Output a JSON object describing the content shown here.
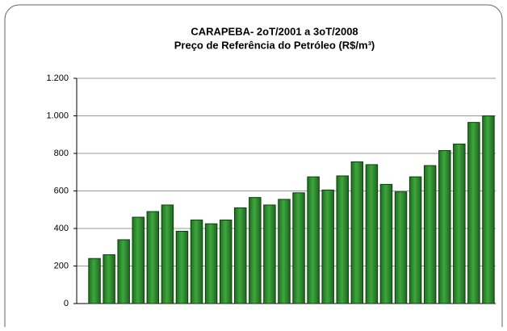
{
  "chart_data": {
    "type": "bar",
    "title": "CARAPEBA- 2oT/2001 a 3oT/2008",
    "subtitle": "Preço de Referência do Petróleo (R$/m³)",
    "categories": [
      null,
      null,
      null,
      null,
      null,
      null,
      null,
      null,
      null,
      null,
      null,
      null,
      null,
      null,
      null,
      null,
      null,
      null,
      null,
      null,
      null,
      null,
      null,
      null,
      null,
      null,
      null,
      null
    ],
    "values": [
      240,
      260,
      340,
      460,
      490,
      525,
      385,
      445,
      425,
      445,
      510,
      565,
      525,
      555,
      590,
      675,
      605,
      680,
      755,
      740,
      635,
      595,
      675,
      735,
      815,
      850,
      965,
      1000
    ],
    "color": "#2f8f2f",
    "ylim": [
      0,
      1200
    ],
    "yticks": [
      0,
      200,
      400,
      600,
      800,
      {
        "value": 1000,
        "label": "1.000"
      },
      {
        "value": 1200,
        "label": "1.200"
      }
    ],
    "grid": true
  }
}
